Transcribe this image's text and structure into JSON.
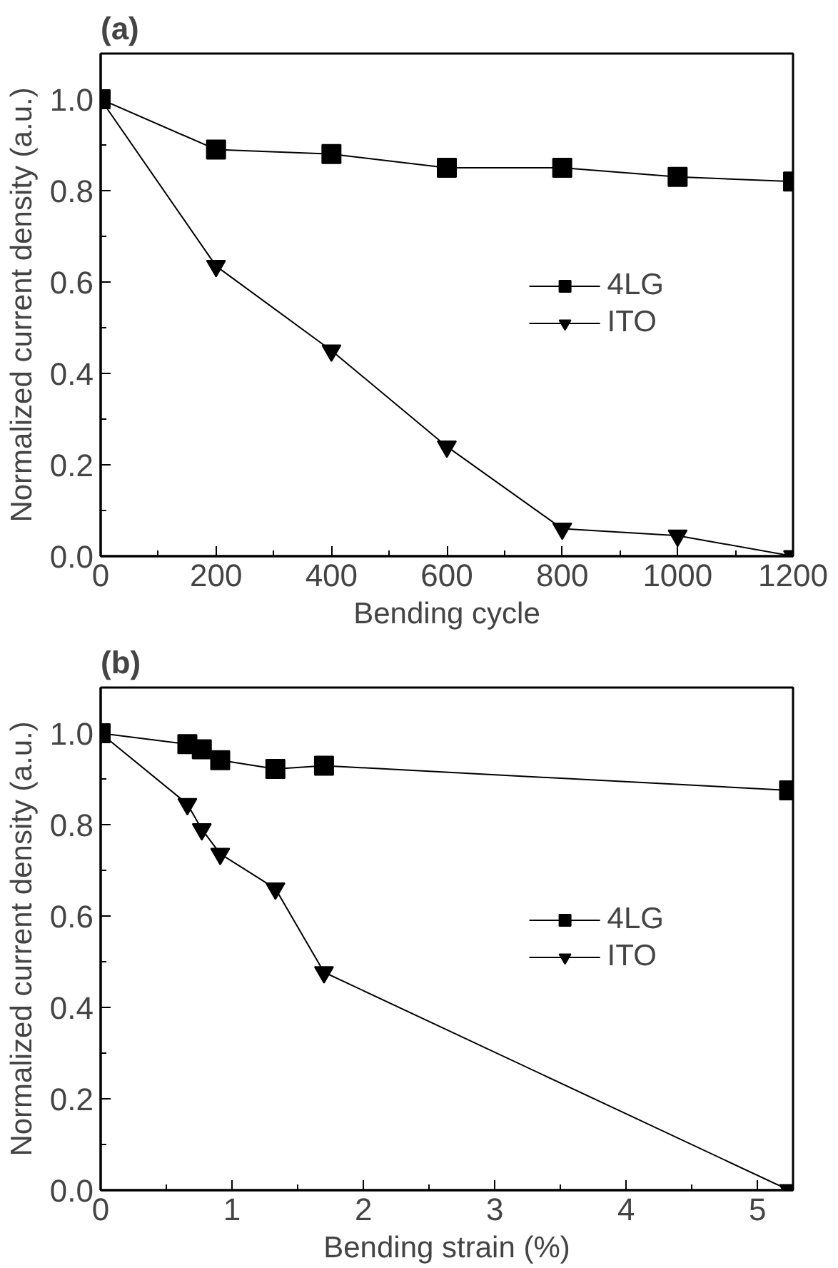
{
  "chart_data": [
    {
      "type": "line",
      "title": "(a)",
      "xlabel": "Bending cycle",
      "ylabel": "Normalized current density (a.u.)",
      "xlim": [
        0,
        1200
      ],
      "ylim": [
        0,
        1.1
      ],
      "xticks": [
        0,
        {
          "value": 100,
          "label": null
        },
        200,
        {
          "value": 300,
          "label": null
        },
        400,
        {
          "value": 500,
          "label": null
        },
        600,
        {
          "value": 700,
          "label": null
        },
        800,
        {
          "value": 900,
          "label": null
        },
        1000,
        {
          "value": 1100,
          "label": null
        },
        1200
      ],
      "yticks": [
        "0.0",
        {
          "value": 0.1,
          "label": null
        },
        0.2,
        {
          "value": 0.3,
          "label": null
        },
        0.4,
        {
          "value": 0.5,
          "label": null
        },
        0.6,
        {
          "value": 0.7,
          "label": null
        },
        0.8,
        {
          "value": 0.9,
          "label": null
        },
        {
          "value": 1.0,
          "label": "1.0"
        }
      ],
      "legend": "right",
      "grid": false,
      "line_style": "solid",
      "series": [
        {
          "name": "4LG",
          "color": "#000000",
          "marker": "square",
          "x": [
            0,
            200,
            400,
            600,
            800,
            1000,
            1200
          ],
          "values": [
            1.0,
            0.89,
            0.88,
            0.85,
            0.85,
            0.83,
            0.82
          ]
        },
        {
          "name": "ITO",
          "color": "#000000",
          "marker": "triangle",
          "x": [
            0,
            200,
            400,
            600,
            800,
            1000,
            1200
          ],
          "values": [
            1.0,
            0.635,
            0.45,
            0.24,
            0.06,
            0.045,
            0.0
          ]
        }
      ]
    },
    {
      "type": "line",
      "title": "(b)",
      "xlabel": "Bending strain (%)",
      "ylabel": "Normalized current density (a.u.)",
      "xlim": [
        0,
        5.27
      ],
      "ylim": [
        0,
        1.1
      ],
      "xticks": [
        0,
        {
          "value": 0.5,
          "label": null
        },
        1,
        {
          "value": 1.5,
          "label": null
        },
        2,
        {
          "value": 2.5,
          "label": null
        },
        3,
        {
          "value": 3.5,
          "label": null
        },
        4,
        {
          "value": 4.5,
          "label": null
        },
        5
      ],
      "yticks": [
        {
          "value": 0,
          "label": "0.0"
        },
        {
          "value": 0.1,
          "label": null
        },
        0.2,
        {
          "value": 0.3,
          "label": null
        },
        0.4,
        {
          "value": 0.5,
          "label": null
        },
        0.6,
        {
          "value": 0.7,
          "label": null
        },
        0.8,
        {
          "value": 0.9,
          "label": null
        },
        {
          "value": 1.0,
          "label": "1.0"
        }
      ],
      "legend": "right",
      "grid": false,
      "line_style": "solid",
      "series": [
        {
          "name": "4LG",
          "color": "#000000",
          "marker": "square",
          "x": [
            0,
            0.66,
            0.77,
            0.91,
            1.33,
            1.7,
            5.24
          ],
          "values": [
            1.0,
            0.976,
            0.965,
            0.941,
            0.922,
            0.929,
            0.875
          ]
        },
        {
          "name": "ITO",
          "color": "#000000",
          "marker": "triangle",
          "x": [
            0,
            0.66,
            0.77,
            0.91,
            1.33,
            1.7,
            5.24
          ],
          "values": [
            1.0,
            0.845,
            0.79,
            0.736,
            0.66,
            0.477,
            0.0
          ]
        }
      ]
    }
  ]
}
